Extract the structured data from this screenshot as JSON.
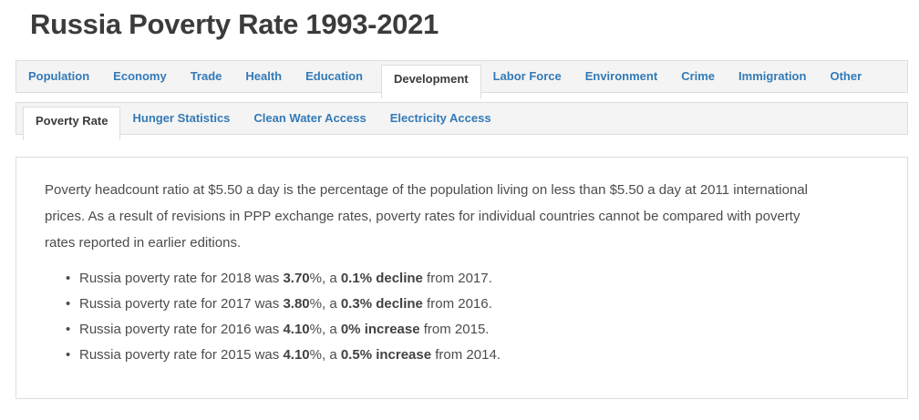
{
  "page": {
    "title": "Russia Poverty Rate 1993-2021"
  },
  "main_tabs": [
    {
      "label": "Population",
      "active": false
    },
    {
      "label": "Economy",
      "active": false
    },
    {
      "label": "Trade",
      "active": false
    },
    {
      "label": "Health",
      "active": false
    },
    {
      "label": "Education",
      "active": false
    },
    {
      "label": "Development",
      "active": true
    },
    {
      "label": "Labor Force",
      "active": false
    },
    {
      "label": "Environment",
      "active": false
    },
    {
      "label": "Crime",
      "active": false
    },
    {
      "label": "Immigration",
      "active": false
    },
    {
      "label": "Other",
      "active": false
    }
  ],
  "sub_tabs": [
    {
      "label": "Poverty Rate",
      "active": true
    },
    {
      "label": "Hunger Statistics",
      "active": false
    },
    {
      "label": "Clean Water Access",
      "active": false
    },
    {
      "label": "Electricity Access",
      "active": false
    }
  ],
  "content": {
    "paragraph_lines": [
      "Poverty headcount ratio at $5.50 a day is the percentage of the population living on less than $5.50 a day at 2011 international",
      "prices. As a result of revisions in PPP exchange rates, poverty rates for individual countries cannot be compared with poverty",
      "rates reported in earlier editions."
    ],
    "bullets": [
      {
        "prefix": "Russia poverty rate for 2018 was ",
        "value": "3.70",
        "mid": "%, a ",
        "change": "0.1% decline",
        "suffix": " from 2017."
      },
      {
        "prefix": "Russia poverty rate for 2017 was ",
        "value": "3.80",
        "mid": "%, a ",
        "change": "0.3% decline",
        "suffix": " from 2016."
      },
      {
        "prefix": "Russia poverty rate for 2016 was ",
        "value": "4.10",
        "mid": "%, a ",
        "change": "0% increase",
        "suffix": " from 2015."
      },
      {
        "prefix": "Russia poverty rate for 2015 was ",
        "value": "4.10",
        "mid": "%, a ",
        "change": "0.5% increase",
        "suffix": " from 2014."
      }
    ]
  },
  "colors": {
    "link_blue": "#337ab7",
    "active_tab_text": "#3b3b3b",
    "tab_bar_background": "#f4f4f4",
    "border": "#dddddd",
    "title_text": "#3b3b3b",
    "body_text": "#4c4c4c"
  }
}
